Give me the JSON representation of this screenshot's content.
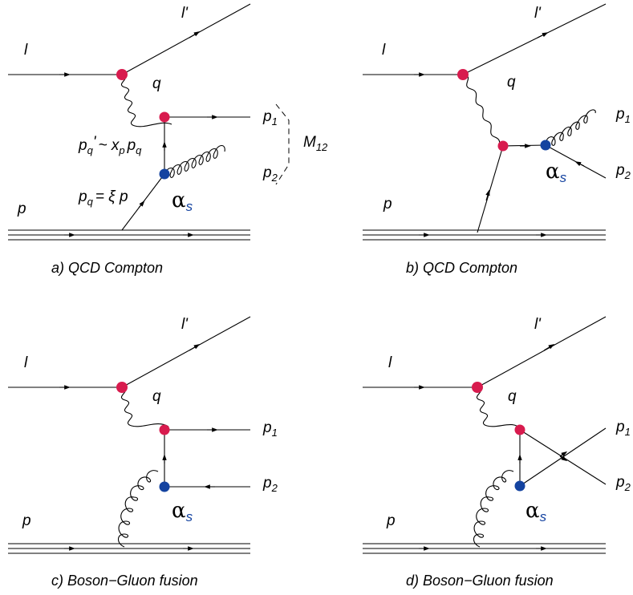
{
  "colors": {
    "em_vertex": "#d81b4e",
    "strong_vertex": "#1443a0",
    "alpha_s_sub": "#1443a0"
  },
  "symbols": {
    "alpha": "α",
    "alpha_sub": "s",
    "lepton_in": "l",
    "lepton_out": "l",
    "lepton_out_prime": "'",
    "boson": "q",
    "proton": "p",
    "p": "p",
    "sub1": "1",
    "sub2": "2",
    "M": "M",
    "M_sub": "12",
    "p_q_prime_main": "p",
    "p_q_prime_sub": "q",
    "p_q_prime_mark": "'",
    "p_q_prime_rest": "~ x",
    "p_q_prime_xsub": "p",
    "p_q_prime_pq": "p",
    "p_q_prime_pq_sub": "q",
    "p_q_main": "p",
    "p_q_sub": "q",
    "p_q_rest": "= ξ p"
  },
  "diagrams": {
    "a": {
      "caption": "a) QCD Compton"
    },
    "b": {
      "caption": "b) QCD Compton"
    },
    "c": {
      "caption": "c) Boson−Gluon fusion"
    },
    "d": {
      "caption": "d) Boson−Gluon fusion"
    }
  }
}
